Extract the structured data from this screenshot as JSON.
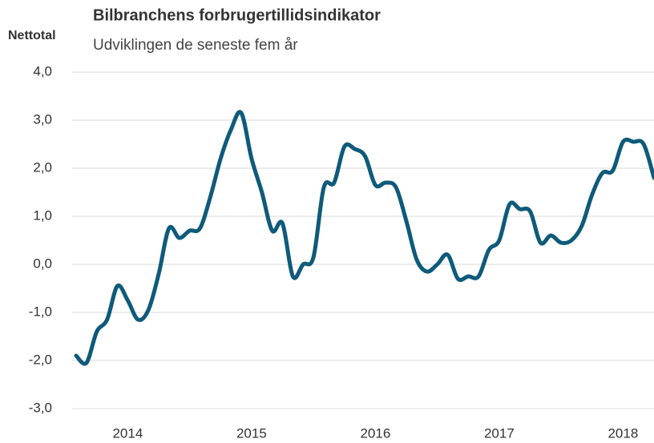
{
  "chart_data": {
    "type": "line",
    "title": "Bilbranchens forbrugertillidsindikator",
    "subtitle": "Udviklingen de seneste fem år",
    "y_label": "Nettotal",
    "categories": [
      null,
      null,
      null,
      null,
      null,
      "2014",
      null,
      null,
      null,
      null,
      null,
      null,
      null,
      null,
      null,
      null,
      null,
      "2015",
      null,
      null,
      null,
      null,
      null,
      null,
      null,
      null,
      null,
      null,
      null,
      "2016",
      null,
      null,
      null,
      null,
      null,
      null,
      null,
      null,
      null,
      null,
      null,
      "2017",
      null,
      null,
      null,
      null,
      null,
      null,
      null,
      null,
      null,
      null,
      null,
      "2018",
      null,
      null,
      null
    ],
    "series": [
      {
        "name": "Nettotal",
        "color": "#0e5a7a",
        "values": [
          -1.9,
          -2.05,
          -1.4,
          -1.15,
          -0.45,
          -0.75,
          -1.15,
          -0.95,
          -0.2,
          0.75,
          0.55,
          0.7,
          0.75,
          1.4,
          2.2,
          2.8,
          3.15,
          2.2,
          1.5,
          0.7,
          0.85,
          -0.25,
          0.0,
          0.15,
          1.6,
          1.7,
          2.45,
          2.4,
          2.25,
          1.65,
          1.7,
          1.6,
          0.9,
          0.1,
          -0.15,
          0.0,
          0.2,
          -0.3,
          -0.25,
          -0.25,
          0.3,
          0.5,
          1.25,
          1.15,
          1.1,
          0.45,
          0.6,
          0.45,
          0.5,
          0.8,
          1.45,
          1.9,
          1.95,
          2.55,
          2.55,
          2.5,
          1.8
        ]
      }
    ],
    "ylim": [
      -3,
      4
    ],
    "yticks": [
      {
        "value": -3,
        "label": "-3,0"
      },
      {
        "value": -2,
        "label": "-2,0"
      },
      {
        "value": -1,
        "label": "-1,0"
      },
      {
        "value": 0,
        "label": "0,0"
      },
      {
        "value": 1,
        "label": "1,0"
      },
      {
        "value": 2,
        "label": "2,0"
      },
      {
        "value": 3,
        "label": "3,0"
      },
      {
        "value": 4,
        "label": "4,0"
      }
    ],
    "grid": true
  }
}
